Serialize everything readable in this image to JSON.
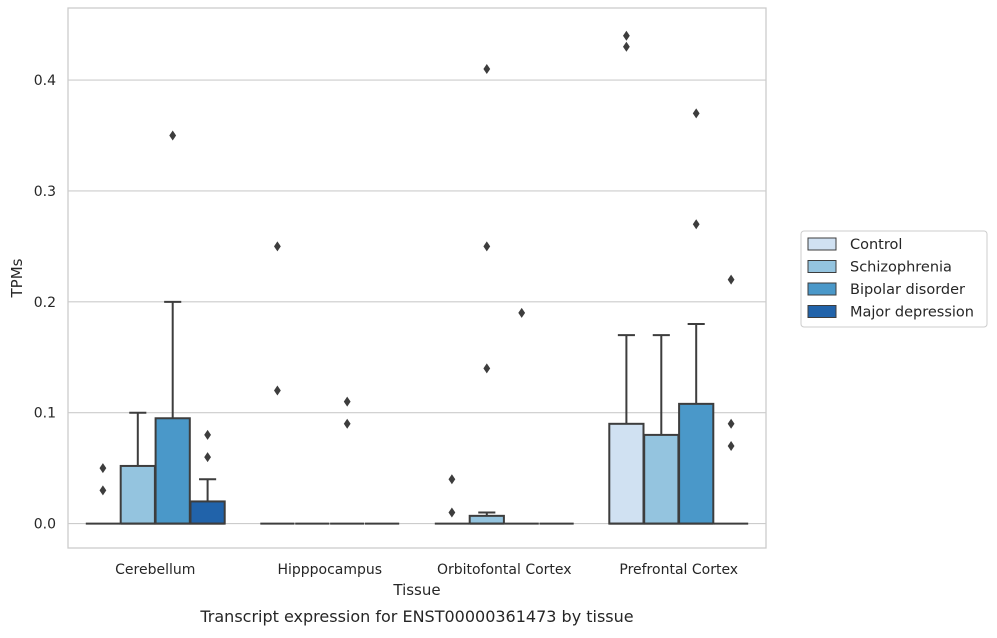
{
  "caption": "Transcript expression for ENST00000361473 by tissue",
  "chart_data": {
    "type": "box",
    "xlabel": "Tissue",
    "ylabel": "TPMs",
    "categories": [
      "Cerebellum",
      "Hipppocampus",
      "Orbitofontal Cortex",
      "Prefrontal Cortex"
    ],
    "ylim": [
      -0.022,
      0.465
    ],
    "yticks": [
      "0.0",
      "0.1",
      "0.2",
      "0.3",
      "0.4"
    ],
    "ytick_values": [
      0,
      0.1,
      0.2,
      0.3,
      0.4
    ],
    "grid": true,
    "legend_position": "right",
    "series": [
      {
        "name": "Control",
        "color": "#d0e1f2",
        "boxes": [
          {
            "q1": 0,
            "q3": 0,
            "median": 0,
            "whisker_low": 0,
            "whisker_high": 0,
            "outliers": [
              0.03,
              0.05
            ]
          },
          {
            "q1": 0,
            "q3": 0,
            "median": 0,
            "whisker_low": 0,
            "whisker_high": 0,
            "outliers": [
              0.12,
              0.25
            ]
          },
          {
            "q1": 0,
            "q3": 0,
            "median": 0,
            "whisker_low": 0,
            "whisker_high": 0,
            "outliers": [
              0.01,
              0.04
            ]
          },
          {
            "q1": 0,
            "q3": 0.09,
            "median": 0,
            "whisker_low": 0,
            "whisker_high": 0.17,
            "outliers": [
              0.43,
              0.44
            ]
          }
        ]
      },
      {
        "name": "Schizophrenia",
        "color": "#94c4df",
        "boxes": [
          {
            "q1": 0,
            "q3": 0.052,
            "median": 0,
            "whisker_low": 0,
            "whisker_high": 0.1,
            "outliers": []
          },
          {
            "q1": 0,
            "q3": 0,
            "median": 0,
            "whisker_low": 0,
            "whisker_high": 0,
            "outliers": []
          },
          {
            "q1": 0,
            "q3": 0.007,
            "median": 0,
            "whisker_low": 0,
            "whisker_high": 0.01,
            "outliers": [
              0.14,
              0.25,
              0.41
            ]
          },
          {
            "q1": 0,
            "q3": 0.08,
            "median": 0,
            "whisker_low": 0,
            "whisker_high": 0.17,
            "outliers": []
          }
        ]
      },
      {
        "name": "Bipolar disorder",
        "color": "#4a98c9",
        "boxes": [
          {
            "q1": 0,
            "q3": 0.095,
            "median": 0,
            "whisker_low": 0,
            "whisker_high": 0.2,
            "outliers": [
              0.35
            ]
          },
          {
            "q1": 0,
            "q3": 0,
            "median": 0,
            "whisker_low": 0,
            "whisker_high": 0,
            "outliers": [
              0.09,
              0.11
            ]
          },
          {
            "q1": 0,
            "q3": 0,
            "median": 0,
            "whisker_low": 0,
            "whisker_high": 0,
            "outliers": [
              0.19
            ]
          },
          {
            "q1": 0,
            "q3": 0.108,
            "median": 0,
            "whisker_low": 0,
            "whisker_high": 0.18,
            "outliers": [
              0.27,
              0.37
            ]
          }
        ]
      },
      {
        "name": "Major depression",
        "color": "#2163aa",
        "boxes": [
          {
            "q1": 0,
            "q3": 0.02,
            "median": 0,
            "whisker_low": 0,
            "whisker_high": 0.04,
            "outliers": [
              0.06,
              0.08
            ]
          },
          {
            "q1": 0,
            "q3": 0,
            "median": 0,
            "whisker_low": 0,
            "whisker_high": 0,
            "outliers": []
          },
          {
            "q1": 0,
            "q3": 0,
            "median": 0,
            "whisker_low": 0,
            "whisker_high": 0,
            "outliers": []
          },
          {
            "q1": 0,
            "q3": 0,
            "median": 0,
            "whisker_low": 0,
            "whisker_high": 0,
            "outliers": [
              0.07,
              0.09,
              0.22
            ]
          }
        ]
      }
    ]
  }
}
